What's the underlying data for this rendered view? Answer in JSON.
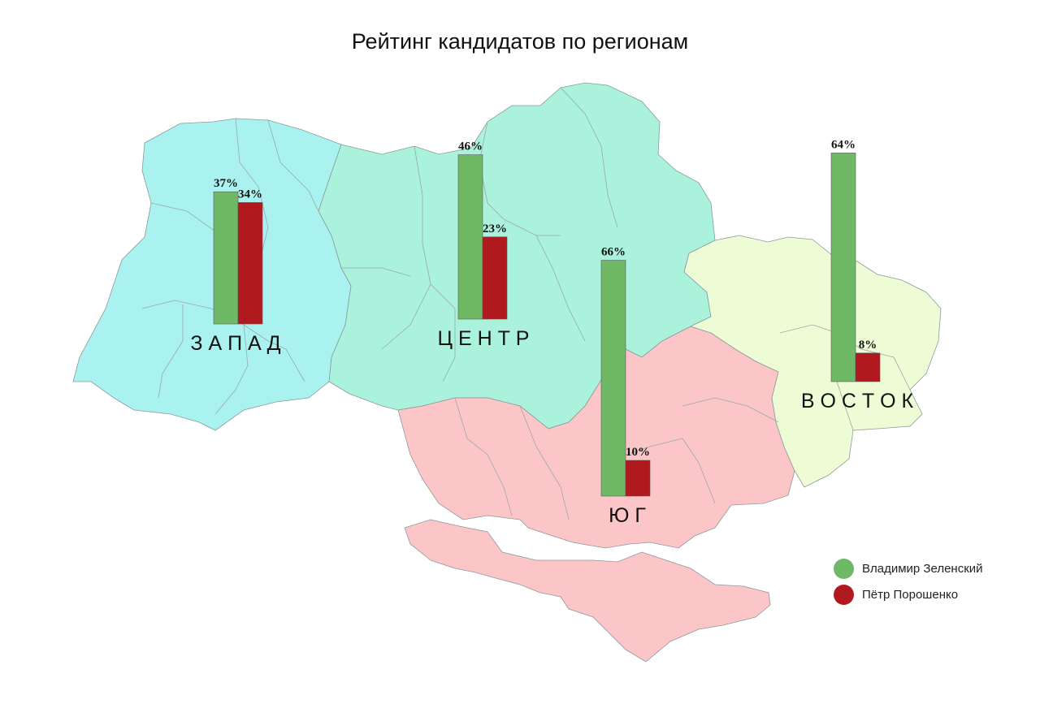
{
  "title": "Рейтинг кандидатов по регионам",
  "colors": {
    "west": "#aaf2f0",
    "center": "#aaf2dc",
    "south": "#fcc6c8",
    "east": "#eefcd6",
    "border": "#8a9a9a",
    "zelensky": "#6eb866",
    "poroshenko": "#b0191e"
  },
  "legend": [
    {
      "name": "Владимир Зеленский",
      "color": "#6eb866"
    },
    {
      "name": "Пётр Порошенко",
      "color": "#b0191e"
    }
  ],
  "chart_data": {
    "type": "bar",
    "title": "Рейтинг кандидатов по регионам",
    "categories": [
      "З А П А Д",
      "Ц Е Н Т Р",
      "Ю Г",
      "В О С Т О К"
    ],
    "series": [
      {
        "name": "Владимир Зеленский",
        "values": [
          37,
          46,
          66,
          64
        ]
      },
      {
        "name": "Пётр Порошенко",
        "values": [
          34,
          23,
          10,
          8
        ]
      }
    ],
    "value_labels": [
      [
        "37%",
        "34%"
      ],
      [
        "46%",
        "23%"
      ],
      [
        "66%",
        "10%"
      ],
      [
        "64%",
        "8%"
      ]
    ],
    "unit": "%",
    "legend_position": "bottom-right"
  }
}
